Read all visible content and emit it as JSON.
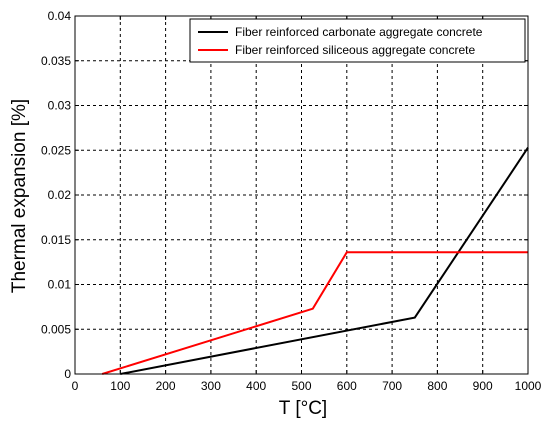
{
  "chart_data": {
    "type": "line",
    "title": "",
    "xlabel": "T [°C]",
    "ylabel": "Thermal expansion [%]",
    "xlim": [
      0,
      1000
    ],
    "ylim": [
      0,
      0.04
    ],
    "xticks": [
      "0",
      "100",
      "200",
      "300",
      "400",
      "500",
      "600",
      "700",
      "800",
      "900",
      "1000"
    ],
    "yticks": [
      "0",
      "0.005",
      "0.01",
      "0.015",
      "0.02",
      "0.025",
      "0.03",
      "0.035",
      "0.04"
    ],
    "grid": true,
    "legend_position": "top-right",
    "series": [
      {
        "name": "Fiber reinforced carbonate aggregate concrete",
        "color": "#000000",
        "x": [
          100,
          750,
          1000
        ],
        "y": [
          0,
          0.0063,
          0.0253
        ]
      },
      {
        "name": "Fiber reinforced siliceous aggregate concrete",
        "color": "#ff0000",
        "x": [
          60,
          525,
          600,
          1000
        ],
        "y": [
          0,
          0.0073,
          0.0136,
          0.0136
        ]
      }
    ]
  }
}
